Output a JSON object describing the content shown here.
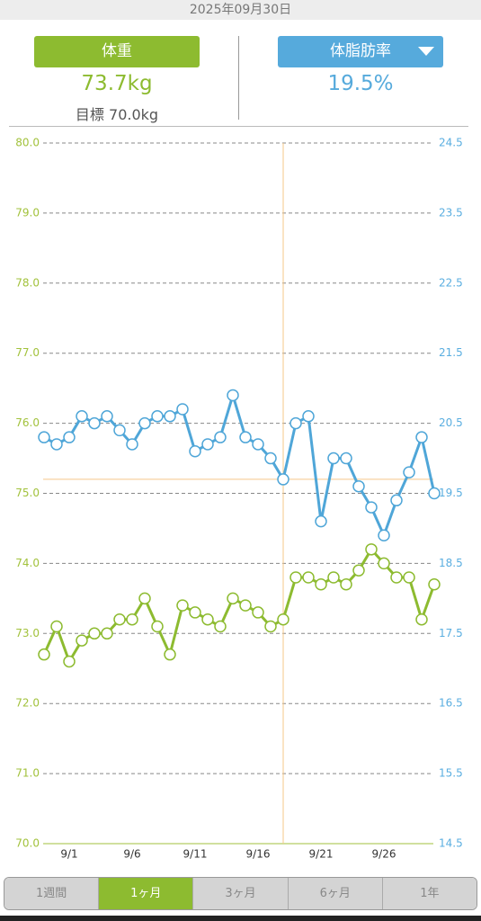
{
  "header": {
    "date": "2025年09月30日",
    "weight": "73.7kg",
    "goal": "目標 70.0kg",
    "body_fat": "19.5%"
  },
  "chart_data": {
    "type": "line",
    "categories": [
      null,
      null,
      "9/1",
      null,
      null,
      null,
      null,
      "9/6",
      null,
      null,
      null,
      null,
      "9/11",
      null,
      null,
      null,
      null,
      "9/16",
      null,
      null,
      null,
      null,
      "9/21",
      null,
      null,
      null,
      null,
      "9/26",
      null,
      null,
      null,
      null
    ],
    "series": [
      {
        "name": "体重",
        "color": "#8dbb30",
        "axis": "y",
        "values": [
          72.7,
          73.1,
          72.6,
          72.9,
          73.0,
          73.0,
          73.2,
          73.2,
          73.5,
          73.1,
          72.7,
          73.4,
          73.3,
          73.2,
          73.1,
          73.5,
          73.4,
          73.3,
          73.1,
          73.2,
          73.8,
          73.8,
          73.7,
          73.8,
          73.7,
          73.9,
          74.2,
          74.0,
          73.8,
          73.8,
          73.2,
          73.7
        ]
      },
      {
        "name": "体脂肪率",
        "color": "#4fa6d8",
        "axis": "y2",
        "values": [
          20.3,
          20.2,
          20.3,
          20.6,
          20.5,
          20.6,
          20.4,
          20.2,
          20.5,
          20.6,
          20.6,
          20.7,
          20.1,
          20.2,
          20.3,
          20.9,
          20.3,
          20.2,
          20.0,
          19.7,
          20.5,
          20.6,
          19.1,
          20.0,
          20.0,
          19.6,
          19.3,
          18.9,
          19.4,
          19.8,
          20.3,
          19.5
        ]
      }
    ],
    "ylim": [
      70,
      80
    ],
    "yticks": [
      {
        "value": 70,
        "label": "70.0"
      },
      {
        "value": 71,
        "label": "71.0"
      },
      {
        "value": 72,
        "label": "72.0"
      },
      {
        "value": 73,
        "label": "73.0"
      },
      {
        "value": 74,
        "label": "74.0"
      },
      {
        "value": 75,
        "label": "75.0"
      },
      {
        "value": 76,
        "label": "76.0"
      },
      {
        "value": 77,
        "label": "77.0"
      },
      {
        "value": 78,
        "label": "78.0"
      },
      {
        "value": 79,
        "label": "79.0"
      },
      {
        "value": 80,
        "label": "80.0"
      }
    ],
    "y2lim": [
      14.5,
      24.5
    ],
    "y2ticks": [
      14.5,
      15.5,
      16.5,
      17.5,
      18.5,
      19.5,
      20.5,
      21.5,
      22.5,
      23.5,
      24.5
    ],
    "grid": true,
    "crosshair_index": 19
  },
  "tabs": [
    "1週間",
    "1ヶ月",
    "3ヶ月",
    "6ヶ月",
    "1年"
  ],
  "selected_tab": 1
}
